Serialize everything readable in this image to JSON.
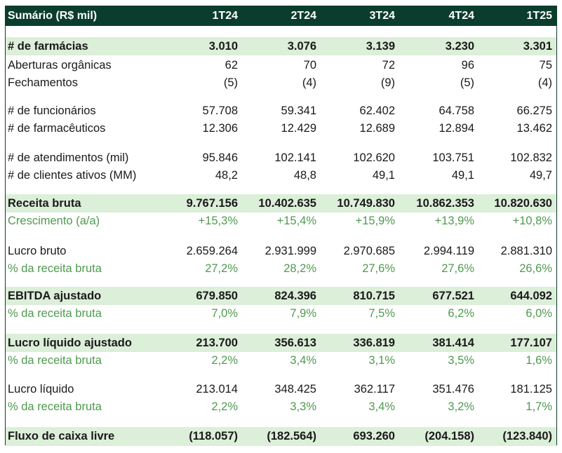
{
  "header": {
    "title": "Sumário (R$ mil)",
    "periods": [
      "1T24",
      "2T24",
      "3T24",
      "4T24",
      "1T25"
    ]
  },
  "rows": [
    {
      "label": "# de farmácias",
      "values": [
        "3.010",
        "3.076",
        "3.139",
        "3.230",
        "3.301"
      ],
      "style": "bold-highlight"
    },
    {
      "label": "Aberturas orgânicas",
      "values": [
        "62",
        "70",
        "72",
        "96",
        "75"
      ],
      "style": "normal"
    },
    {
      "label": "Fechamentos",
      "values": [
        "(5)",
        "(4)",
        "(9)",
        "(5)",
        "(4)"
      ],
      "style": "normal"
    },
    {
      "label": "# de funcionários",
      "values": [
        "57.708",
        "59.341",
        "62.402",
        "64.758",
        "66.275"
      ],
      "style": "normal"
    },
    {
      "label": "# de farmacêuticos",
      "values": [
        "12.306",
        "12.429",
        "12.689",
        "12.894",
        "13.462"
      ],
      "style": "normal"
    },
    {
      "label": "# de atendimentos (mil)",
      "values": [
        "95.846",
        "102.141",
        "102.620",
        "103.751",
        "102.832"
      ],
      "style": "normal"
    },
    {
      "label": "# de clientes ativos (MM)",
      "values": [
        "48,2",
        "48,8",
        "49,1",
        "49,1",
        "49,7"
      ],
      "style": "normal"
    },
    {
      "label": "Receita bruta",
      "values": [
        "9.767.156",
        "10.402.635",
        "10.749.830",
        "10.862.353",
        "10.820.630"
      ],
      "style": "bold-highlight"
    },
    {
      "label": "Crescimento (a/a)",
      "values": [
        "+15,3%",
        "+15,4%",
        "+15,9%",
        "+13,9%",
        "+10,8%"
      ],
      "style": "green"
    },
    {
      "label": "Lucro bruto",
      "values": [
        "2.659.264",
        "2.931.999",
        "2.970.685",
        "2.994.119",
        "2.881.310"
      ],
      "style": "normal"
    },
    {
      "label": "% da receita bruta",
      "values": [
        "27,2%",
        "28,2%",
        "27,6%",
        "27,6%",
        "26,6%"
      ],
      "style": "green"
    },
    {
      "label": "EBITDA ajustado",
      "values": [
        "679.850",
        "824.396",
        "810.715",
        "677.521",
        "644.092"
      ],
      "style": "bold-highlight"
    },
    {
      "label": "% da receita bruta",
      "values": [
        "7,0%",
        "7,9%",
        "7,5%",
        "6,2%",
        "6,0%"
      ],
      "style": "green"
    },
    {
      "label": "Lucro líquido ajustado",
      "values": [
        "213.700",
        "356.613",
        "336.819",
        "381.414",
        "177.107"
      ],
      "style": "bold-highlight"
    },
    {
      "label": "% da receita bruta",
      "values": [
        "2,2%",
        "3,4%",
        "3,1%",
        "3,5%",
        "1,6%"
      ],
      "style": "green"
    },
    {
      "label": "Lucro líquido",
      "values": [
        "213.014",
        "348.425",
        "362.117",
        "351.476",
        "181.125"
      ],
      "style": "normal"
    },
    {
      "label": "% da receita bruta",
      "values": [
        "2,2%",
        "3,3%",
        "3,4%",
        "3,2%",
        "1,7%"
      ],
      "style": "green"
    },
    {
      "label": "Fluxo de caixa livre",
      "values": [
        "(118.057)",
        "(182.564)",
        "693.260",
        "(204.158)",
        "(123.840)"
      ],
      "style": "bold-highlight"
    }
  ],
  "colors": {
    "header_bg": "#0b3d2e",
    "highlight_bg": "#dcefd9",
    "green_text": "#4f9a4f"
  }
}
